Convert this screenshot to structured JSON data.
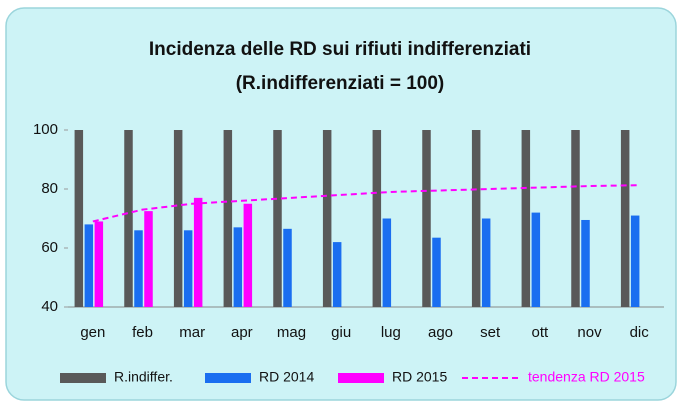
{
  "chart_data": {
    "type": "bar",
    "title": "Incidenza delle RD sui rifiuti indifferenziati",
    "subtitle": "(R.indifferenziati = 100)",
    "categories": [
      "gen",
      "feb",
      "mar",
      "apr",
      "mag",
      "giu",
      "lug",
      "ago",
      "set",
      "ott",
      "nov",
      "dic"
    ],
    "series": [
      {
        "name": "R.indiffer.",
        "color": "#595959",
        "kind": "bar",
        "values": [
          100,
          100,
          100,
          100,
          100,
          100,
          100,
          100,
          100,
          100,
          100,
          100
        ]
      },
      {
        "name": "RD 2014",
        "color": "#1a6ef0",
        "kind": "bar",
        "values": [
          68,
          66,
          66,
          67,
          66.5,
          62,
          70,
          63.5,
          70,
          72,
          69.5,
          71
        ]
      },
      {
        "name": "RD 2015",
        "color": "#ff00ff",
        "kind": "bar",
        "values": [
          69,
          72.5,
          77,
          75,
          null,
          null,
          null,
          null,
          null,
          null,
          null,
          null
        ]
      },
      {
        "name": "tendenza RD 2015",
        "color": "#ff00ff",
        "kind": "line",
        "dashed": true,
        "values": [
          69,
          73,
          75,
          76,
          77,
          78,
          79,
          79.5,
          80,
          80.5,
          81,
          81.3
        ]
      }
    ],
    "ylim": [
      40,
      100
    ],
    "yticks": [
      40,
      60,
      80,
      100
    ],
    "grid": false
  }
}
